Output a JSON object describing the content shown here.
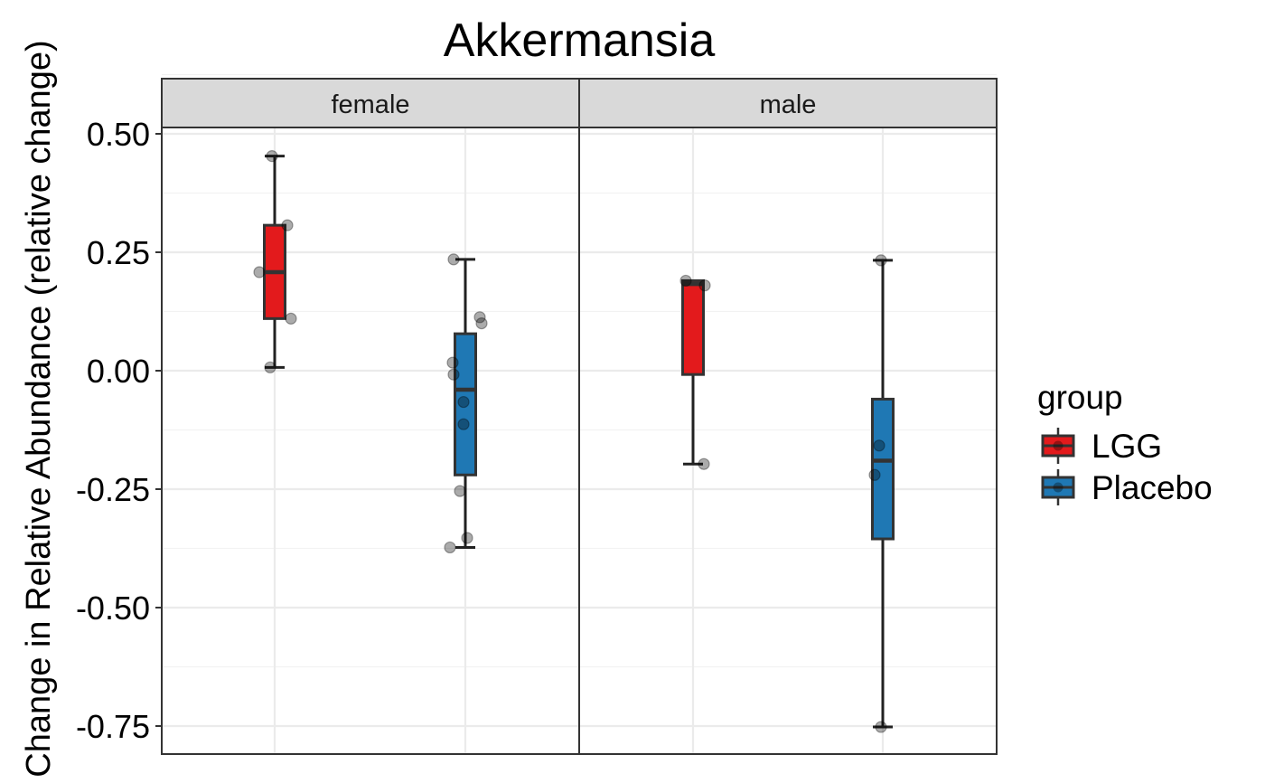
{
  "chart_data": {
    "type": "box",
    "title": "Akkermansia",
    "ylabel": "Change in Relative Abundance (relative change)",
    "xlabel": "",
    "ylim": [
      -0.81,
      0.63
    ],
    "yticks": [
      "-0.75",
      "-0.50",
      "-0.25",
      "0.00",
      "0.25",
      "0.50"
    ],
    "ytick_values": [
      -0.75,
      -0.5,
      -0.25,
      0,
      0.25,
      0.5
    ],
    "legend": {
      "title": "group",
      "position": "right",
      "items": [
        {
          "label": "LGG",
          "color": "#e31a1c"
        },
        {
          "label": "Placebo",
          "color": "#1f78b4"
        }
      ]
    },
    "grid": true,
    "facets": [
      {
        "label": "female",
        "boxes": [
          {
            "group": "LGG",
            "color": "#e31a1c",
            "min": 0.007,
            "q1": 0.11,
            "median": 0.208,
            "q3": 0.307,
            "max": 0.453,
            "points": [
              0.453,
              0.307,
              0.208,
              0.11,
              0.007
            ]
          },
          {
            "group": "Placebo",
            "color": "#1f78b4",
            "min": -0.373,
            "q1": -0.22,
            "median": -0.04,
            "q3": 0.078,
            "max": 0.235,
            "points": [
              0.235,
              0.113,
              0.1,
              0.017,
              -0.008,
              -0.066,
              -0.113,
              -0.254,
              -0.353,
              -0.373
            ]
          }
        ]
      },
      {
        "label": "male",
        "boxes": [
          {
            "group": "LGG",
            "color": "#e31a1c",
            "min": -0.197,
            "q1": -0.008,
            "median": 0.183,
            "q3": 0.19,
            "max": 0.19,
            "points": [
              0.19,
              0.18,
              -0.197
            ]
          },
          {
            "group": "Placebo",
            "color": "#1f78b4",
            "min": -0.752,
            "q1": -0.355,
            "median": -0.19,
            "q3": -0.06,
            "max": 0.233,
            "points": [
              0.233,
              -0.158,
              -0.22,
              -0.752
            ]
          }
        ]
      }
    ]
  }
}
